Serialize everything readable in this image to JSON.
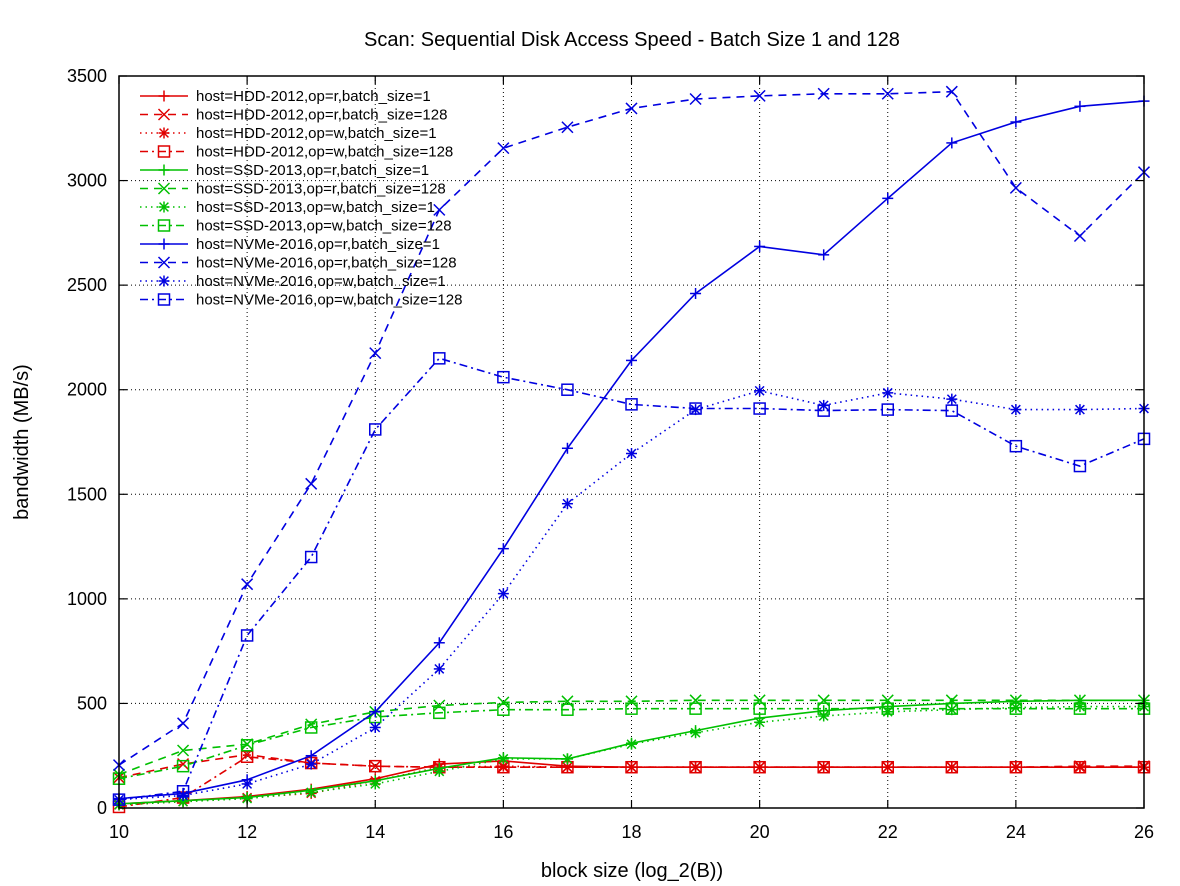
{
  "chart_data": {
    "type": "line",
    "title": "Scan: Sequential Disk Access Speed - Batch Size 1 and 128",
    "xlabel": "block size (log_2(B))",
    "ylabel": "bandwidth (MB/s)",
    "xlim": [
      10,
      26
    ],
    "ylim": [
      0,
      3500
    ],
    "xticks": [
      10,
      12,
      14,
      16,
      18,
      20,
      22,
      24,
      26
    ],
    "yticks": [
      0,
      500,
      1000,
      1500,
      2000,
      2500,
      3000,
      3500
    ],
    "grid": true,
    "legend_position": "top-left",
    "colors": {
      "HDD": "#e00000",
      "SSD": "#00c000",
      "NVMe": "#0000e0"
    },
    "x": [
      10,
      11,
      12,
      13,
      14,
      15,
      16,
      17,
      18,
      19,
      20,
      21,
      22,
      23,
      24,
      25,
      26
    ],
    "series": [
      {
        "name": "host=HDD-2012,op=r,batch_size=1",
        "color": "#e00000",
        "dash": "solid",
        "marker": "plus",
        "values": [
          20,
          35,
          55,
          90,
          140,
          210,
          225,
          200,
          195,
          195,
          195,
          195,
          195,
          195,
          195,
          195,
          195
        ]
      },
      {
        "name": "host=HDD-2012,op=r,batch_size=128",
        "color": "#e00000",
        "dash": "dash",
        "marker": "cross",
        "values": [
          145,
          210,
          255,
          215,
          200,
          195,
          195,
          195,
          195,
          195,
          195,
          195,
          195,
          195,
          195,
          200,
          200
        ]
      },
      {
        "name": "host=HDD-2012,op=w,batch_size=1",
        "color": "#e00000",
        "dash": "dot",
        "marker": "star",
        "values": [
          15,
          30,
          50,
          70,
          130,
          195,
          200,
          195,
          195,
          195,
          195,
          195,
          195,
          195,
          195,
          195,
          195
        ]
      },
      {
        "name": "host=HDD-2012,op=w,batch_size=128",
        "color": "#e00000",
        "dash": "dashdot",
        "marker": "square",
        "values": [
          5,
          50,
          245,
          215,
          200,
          195,
          195,
          195,
          195,
          195,
          195,
          195,
          195,
          195,
          195,
          195,
          195
        ]
      },
      {
        "name": "host=SSD-2013,op=r,batch_size=1",
        "color": "#00c000",
        "dash": "solid",
        "marker": "plus",
        "values": [
          20,
          35,
          50,
          85,
          130,
          190,
          240,
          235,
          310,
          370,
          430,
          465,
          485,
          500,
          510,
          515,
          515
        ]
      },
      {
        "name": "host=SSD-2013,op=r,batch_size=128",
        "color": "#00c000",
        "dash": "dash",
        "marker": "cross",
        "values": [
          160,
          275,
          305,
          400,
          460,
          490,
          505,
          510,
          510,
          515,
          515,
          515,
          515,
          515,
          515,
          515,
          515
        ]
      },
      {
        "name": "host=SSD-2013,op=w,batch_size=1",
        "color": "#00c000",
        "dash": "dot",
        "marker": "star",
        "values": [
          15,
          30,
          45,
          75,
          115,
          175,
          235,
          235,
          305,
          360,
          410,
          440,
          460,
          470,
          480,
          485,
          485
        ]
      },
      {
        "name": "host=SSD-2013,op=w,batch_size=128",
        "color": "#00c000",
        "dash": "dashdot",
        "marker": "square",
        "values": [
          140,
          200,
          300,
          385,
          435,
          455,
          470,
          470,
          475,
          475,
          475,
          475,
          475,
          475,
          475,
          475,
          475
        ]
      },
      {
        "name": "host=NVMe-2016,op=r,batch_size=1",
        "color": "#0000e0",
        "dash": "solid",
        "marker": "plus",
        "values": [
          45,
          70,
          135,
          250,
          460,
          790,
          1240,
          1720,
          2140,
          2460,
          2685,
          2645,
          2915,
          3180,
          3280,
          3355,
          3380
        ]
      },
      {
        "name": "host=NVMe-2016,op=r,batch_size=128",
        "color": "#0000e0",
        "dash": "dash",
        "marker": "cross",
        "values": [
          205,
          405,
          1070,
          1550,
          2175,
          2860,
          3155,
          3255,
          3345,
          3390,
          3405,
          3415,
          3415,
          3425,
          2965,
          2735,
          3040
        ]
      },
      {
        "name": "host=NVMe-2016,op=w,batch_size=1",
        "color": "#0000e0",
        "dash": "dot",
        "marker": "star",
        "values": [
          40,
          60,
          115,
          210,
          385,
          665,
          1025,
          1455,
          1695,
          1905,
          1995,
          1925,
          1985,
          1955,
          1905,
          1905,
          1910
        ]
      },
      {
        "name": "host=NVMe-2016,op=w,batch_size=128",
        "color": "#0000e0",
        "dash": "dashdot",
        "marker": "square",
        "values": [
          40,
          80,
          825,
          1200,
          1810,
          2150,
          2060,
          2000,
          1930,
          1910,
          1910,
          1900,
          1905,
          1900,
          1730,
          1635,
          1765
        ]
      }
    ]
  }
}
